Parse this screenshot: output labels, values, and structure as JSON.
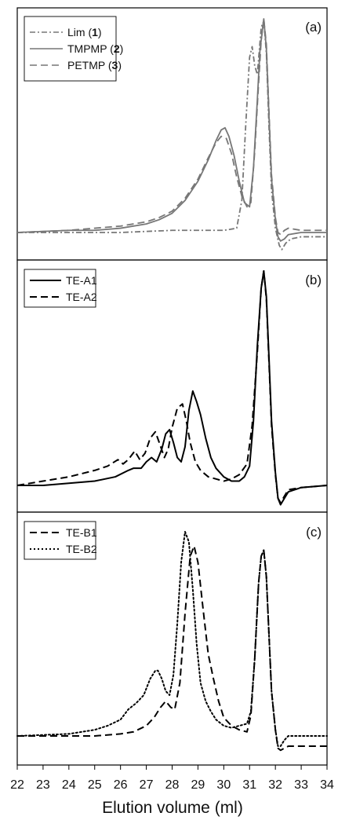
{
  "chart_data": [
    {
      "type": "line",
      "panel_label": "(a)",
      "xlim": [
        22,
        34
      ],
      "legend_position": "top-left",
      "series": [
        {
          "name": "Lim (1)",
          "name_main": "Lim (",
          "name_bold": "1",
          "name_close": ")",
          "color": "#777777",
          "dash": "dash-dot",
          "x": [
            22,
            26,
            28,
            29,
            30,
            30.5,
            30.7,
            30.85,
            31.0,
            31.1,
            31.2,
            31.3,
            31.45,
            31.55,
            31.65,
            31.75,
            31.85,
            32.0,
            32.15,
            32.25,
            32.4,
            32.6,
            33,
            34
          ],
          "y": [
            0.0,
            0.0,
            0.01,
            0.01,
            0.01,
            0.02,
            0.15,
            0.5,
            0.82,
            0.87,
            0.78,
            0.74,
            0.96,
            0.99,
            0.84,
            0.5,
            0.2,
            0.02,
            -0.06,
            -0.08,
            -0.05,
            -0.03,
            -0.02,
            -0.02
          ]
        },
        {
          "name": "TMPMP (2)",
          "name_main": "TMPMP (",
          "name_bold": "2",
          "name_close": ")",
          "color": "#777777",
          "dash": "solid",
          "x": [
            22,
            24,
            25,
            26,
            27,
            27.5,
            28,
            28.5,
            29,
            29.4,
            29.7,
            29.9,
            30.05,
            30.2,
            30.4,
            30.6,
            30.8,
            31.0,
            31.15,
            31.3,
            31.4,
            31.55,
            31.65,
            31.75,
            31.85,
            32.0,
            32.1,
            32.2,
            32.35,
            32.5,
            33,
            34
          ],
          "y": [
            0.0,
            0.01,
            0.01,
            0.02,
            0.04,
            0.06,
            0.09,
            0.15,
            0.24,
            0.34,
            0.43,
            0.48,
            0.49,
            0.45,
            0.36,
            0.24,
            0.14,
            0.12,
            0.3,
            0.62,
            0.85,
            1.0,
            0.86,
            0.55,
            0.25,
            0.06,
            -0.02,
            -0.04,
            -0.03,
            -0.01,
            0.0,
            0.0
          ]
        },
        {
          "name": "PETMP (3)",
          "name_main": "PETMP (",
          "name_bold": "3",
          "name_close": ")",
          "color": "#777777",
          "dash": "dash",
          "x": [
            22,
            24,
            25,
            26,
            27,
            27.5,
            28,
            28.5,
            29,
            29.4,
            29.7,
            29.9,
            30.1,
            30.3,
            30.5,
            30.7,
            30.9,
            31.05,
            31.2,
            31.35,
            31.45,
            31.55,
            31.65,
            31.75,
            31.85,
            32.0,
            32.1,
            32.2,
            32.35,
            32.5,
            33,
            34
          ],
          "y": [
            0.0,
            0.01,
            0.02,
            0.03,
            0.05,
            0.07,
            0.1,
            0.16,
            0.25,
            0.35,
            0.42,
            0.45,
            0.44,
            0.37,
            0.26,
            0.17,
            0.12,
            0.14,
            0.38,
            0.7,
            0.9,
            1.0,
            0.88,
            0.57,
            0.27,
            0.07,
            0.0,
            -0.01,
            0.01,
            0.02,
            0.01,
            0.01
          ]
        }
      ]
    },
    {
      "type": "line",
      "panel_label": "(b)",
      "xlim": [
        22,
        34
      ],
      "legend_position": "top-left",
      "series": [
        {
          "name": "TE-A1",
          "color": "#000000",
          "dash": "solid",
          "x": [
            22,
            23,
            24,
            25,
            25.8,
            26.3,
            26.5,
            26.8,
            27.0,
            27.2,
            27.4,
            27.6,
            27.75,
            27.9,
            28.05,
            28.2,
            28.35,
            28.5,
            28.65,
            28.8,
            28.95,
            29.1,
            29.3,
            29.5,
            29.7,
            30.0,
            30.3,
            30.6,
            30.8,
            31.0,
            31.15,
            31.3,
            31.45,
            31.55,
            31.65,
            31.75,
            31.85,
            32.0,
            32.1,
            32.2,
            32.35,
            32.5,
            33,
            34
          ],
          "y": [
            0.0,
            0.0,
            0.01,
            0.02,
            0.04,
            0.07,
            0.08,
            0.08,
            0.11,
            0.13,
            0.11,
            0.17,
            0.24,
            0.26,
            0.2,
            0.13,
            0.11,
            0.18,
            0.35,
            0.44,
            0.39,
            0.33,
            0.22,
            0.13,
            0.08,
            0.04,
            0.02,
            0.02,
            0.04,
            0.09,
            0.3,
            0.65,
            0.92,
            1.0,
            0.88,
            0.6,
            0.3,
            0.06,
            -0.06,
            -0.09,
            -0.06,
            -0.03,
            -0.01,
            0.0
          ]
        },
        {
          "name": "TE-A2",
          "color": "#000000",
          "dash": "dash",
          "x": [
            22,
            23,
            24,
            25,
            25.5,
            25.9,
            26.1,
            26.3,
            26.55,
            26.75,
            26.95,
            27.15,
            27.35,
            27.5,
            27.7,
            27.85,
            28.0,
            28.2,
            28.4,
            28.55,
            28.7,
            28.9,
            29.1,
            29.4,
            29.7,
            30.0,
            30.3,
            30.6,
            30.9,
            31.1,
            31.3,
            31.45,
            31.55,
            31.65,
            31.75,
            31.85,
            32.0,
            32.1,
            32.2,
            32.35,
            32.5,
            33,
            34
          ],
          "y": [
            0.0,
            0.02,
            0.04,
            0.07,
            0.09,
            0.12,
            0.1,
            0.12,
            0.16,
            0.12,
            0.15,
            0.22,
            0.25,
            0.2,
            0.13,
            0.17,
            0.27,
            0.36,
            0.38,
            0.3,
            0.2,
            0.11,
            0.07,
            0.04,
            0.03,
            0.02,
            0.03,
            0.05,
            0.1,
            0.28,
            0.62,
            0.92,
            1.0,
            0.87,
            0.58,
            0.28,
            0.05,
            -0.06,
            -0.08,
            -0.05,
            -0.02,
            -0.01,
            0.0
          ]
        }
      ]
    },
    {
      "type": "line",
      "panel_label": "(c)",
      "xlim": [
        22,
        34
      ],
      "xlabel": "Elution volume (ml)",
      "xticks": [
        22,
        23,
        24,
        25,
        26,
        27,
        28,
        29,
        30,
        31,
        32,
        33,
        34
      ],
      "legend_position": "top-left",
      "series": [
        {
          "name": "TE-B1",
          "color": "#000000",
          "dash": "dash",
          "x": [
            22,
            24,
            25,
            26,
            26.5,
            27,
            27.3,
            27.55,
            27.75,
            27.95,
            28.1,
            28.3,
            28.5,
            28.7,
            28.85,
            29.0,
            29.2,
            29.4,
            29.6,
            29.8,
            30.0,
            30.3,
            30.6,
            30.9,
            31.05,
            31.2,
            31.35,
            31.45,
            31.55,
            31.65,
            31.75,
            31.85,
            32.0,
            32.1,
            32.2,
            32.35,
            32.5,
            33,
            34
          ],
          "y": [
            0.0,
            0.0,
            0.0,
            0.01,
            0.02,
            0.05,
            0.09,
            0.14,
            0.17,
            0.14,
            0.13,
            0.26,
            0.6,
            0.88,
            0.93,
            0.85,
            0.62,
            0.4,
            0.28,
            0.17,
            0.09,
            0.05,
            0.03,
            0.02,
            0.1,
            0.38,
            0.75,
            0.88,
            0.91,
            0.78,
            0.5,
            0.22,
            0.03,
            -0.06,
            -0.07,
            -0.06,
            -0.05,
            -0.05,
            -0.05
          ]
        },
        {
          "name": "TE-B2",
          "color": "#000000",
          "dash": "dot",
          "x": [
            22,
            24,
            25,
            25.5,
            26,
            26.3,
            26.6,
            26.9,
            27.15,
            27.35,
            27.45,
            27.6,
            27.75,
            27.9,
            28.05,
            28.2,
            28.35,
            28.5,
            28.65,
            28.8,
            28.95,
            29.1,
            29.3,
            29.5,
            29.7,
            30.0,
            30.3,
            30.6,
            30.9,
            31.05,
            31.2,
            31.35,
            31.45,
            31.55,
            31.65,
            31.75,
            31.85,
            32.0,
            32.1,
            32.2,
            32.35,
            32.5,
            33,
            34
          ],
          "y": [
            0.0,
            0.01,
            0.03,
            0.05,
            0.08,
            0.13,
            0.16,
            0.2,
            0.28,
            0.32,
            0.32,
            0.28,
            0.22,
            0.2,
            0.3,
            0.55,
            0.85,
            1.0,
            0.95,
            0.72,
            0.45,
            0.26,
            0.17,
            0.12,
            0.08,
            0.05,
            0.04,
            0.05,
            0.06,
            0.12,
            0.38,
            0.75,
            0.88,
            0.91,
            0.78,
            0.5,
            0.22,
            0.03,
            -0.05,
            -0.05,
            -0.02,
            0.0,
            0.0,
            0.0
          ]
        }
      ]
    }
  ]
}
